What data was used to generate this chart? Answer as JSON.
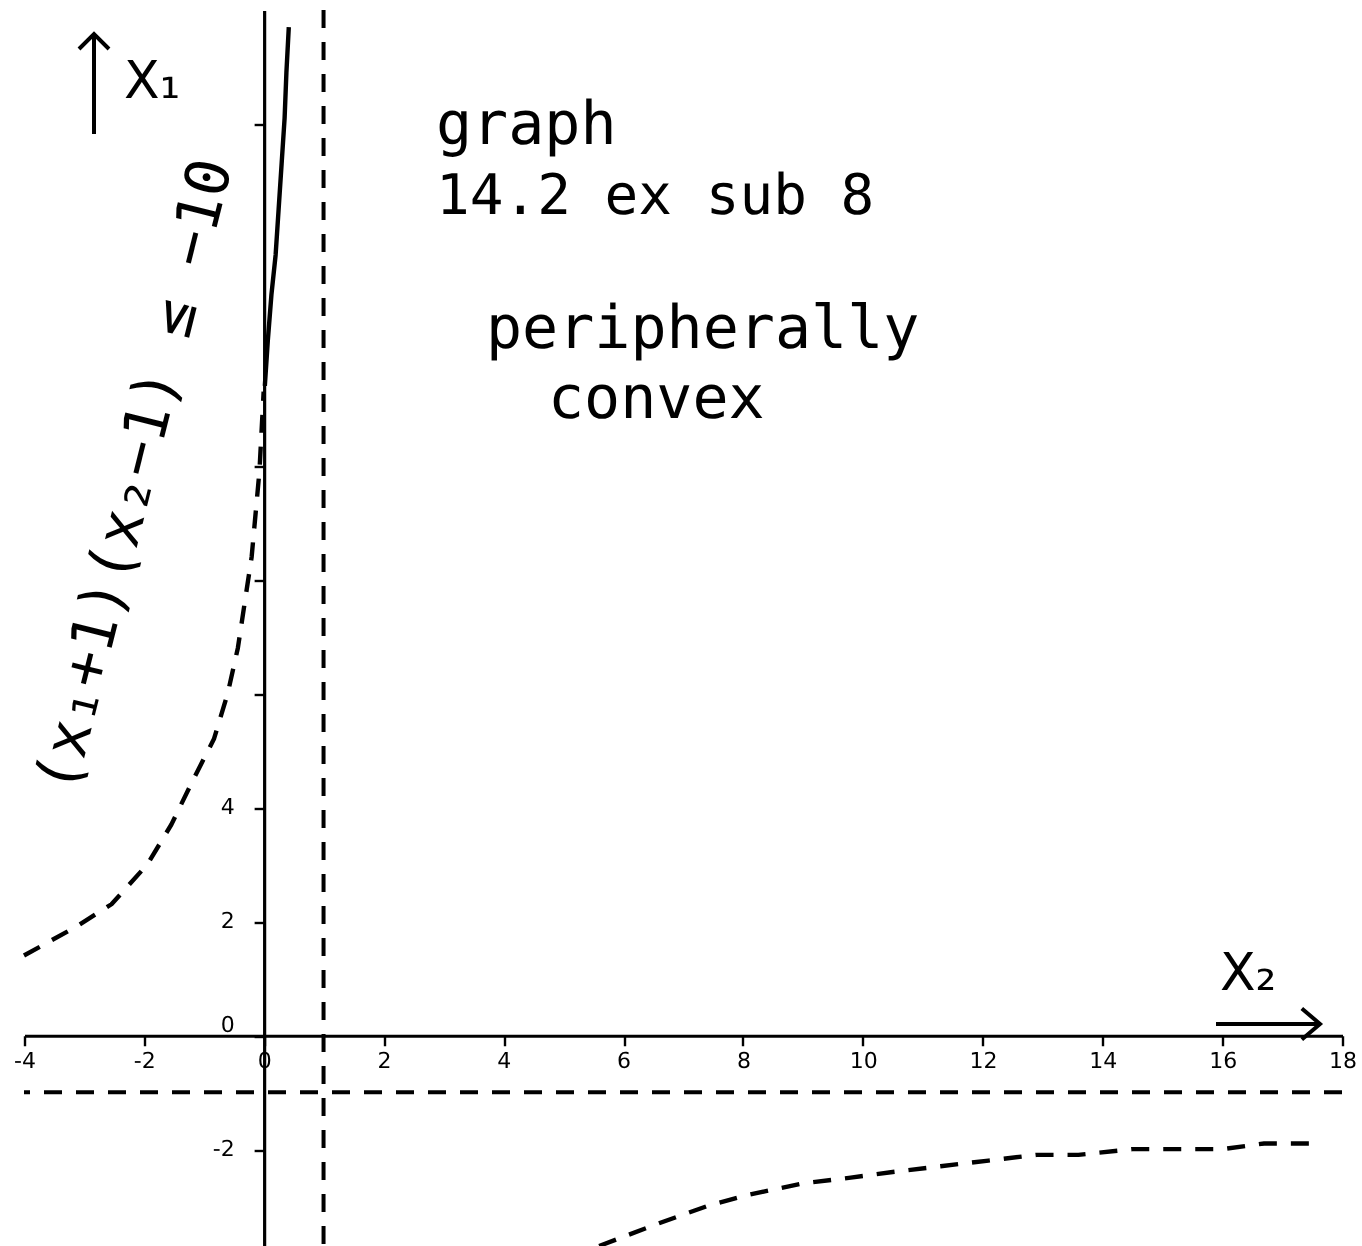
{
  "chart_data": {
    "type": "line",
    "xlabel": "X₂",
    "ylabel": "X₁",
    "annotations": [
      "graph",
      "14.2 ex sub 8",
      "peripherally",
      "convex",
      "(x₁+1)(x₂−1) ≤ −10"
    ],
    "xlim": [
      -4,
      18
    ],
    "ylim": [
      -3.7,
      18
    ],
    "xticks": [
      -4,
      -2,
      0,
      2,
      4,
      6,
      8,
      10,
      12,
      14,
      16,
      18
    ],
    "yticks": [
      -2,
      0,
      2,
      4,
      {
        "value": 6,
        "label": null
      },
      {
        "value": 8,
        "label": null
      },
      {
        "value": 10,
        "label": null
      },
      {
        "value": 16,
        "label": null
      }
    ],
    "grid": false,
    "series": [
      {
        "color": "#000000",
        "line_style": "dashed",
        "x": [
          -4.0,
          -3.14,
          -2.54,
          -1.94,
          -1.54,
          -1.17,
          -0.83,
          -0.6,
          -0.43,
          -0.2,
          -0.07,
          0.0
        ],
        "values": [
          1.4,
          1.9,
          2.3,
          3.0,
          3.7,
          4.5,
          5.2,
          6.0,
          6.8,
          8.4,
          9.9,
          11.3
        ]
      },
      {
        "color": "#000000",
        "line_style": "solid",
        "x": [
          0.02,
          0.07,
          0.13,
          0.2,
          0.25,
          0.3,
          0.35,
          0.38,
          0.42
        ],
        "values": [
          11.4,
          12.2,
          13.0,
          13.7,
          14.5,
          15.3,
          16.1,
          16.9,
          17.7
        ]
      },
      {
        "color": "#000000",
        "line_style": "dashed",
        "x": [
          5.6,
          6.6,
          7.4,
          8.1,
          9.0,
          9.8,
          10.5,
          11.3,
          12.1,
          12.9,
          13.6,
          14.5,
          15.2,
          16.0,
          16.7,
          17.5
        ],
        "values": [
          -3.7,
          -3.3,
          -3.0,
          -2.8,
          -2.6,
          -2.5,
          -2.4,
          -2.3,
          -2.2,
          -2.1,
          -2.1,
          -2.0,
          -2.0,
          -2.0,
          -1.9,
          -1.9
        ]
      }
    ],
    "ref_lines": [
      {
        "axis": "x",
        "value": 1,
        "line_style": "dashed",
        "color": "#000000"
      },
      {
        "axis": "y",
        "value": -1,
        "line_style": "dashed",
        "color": "#000000"
      }
    ]
  }
}
